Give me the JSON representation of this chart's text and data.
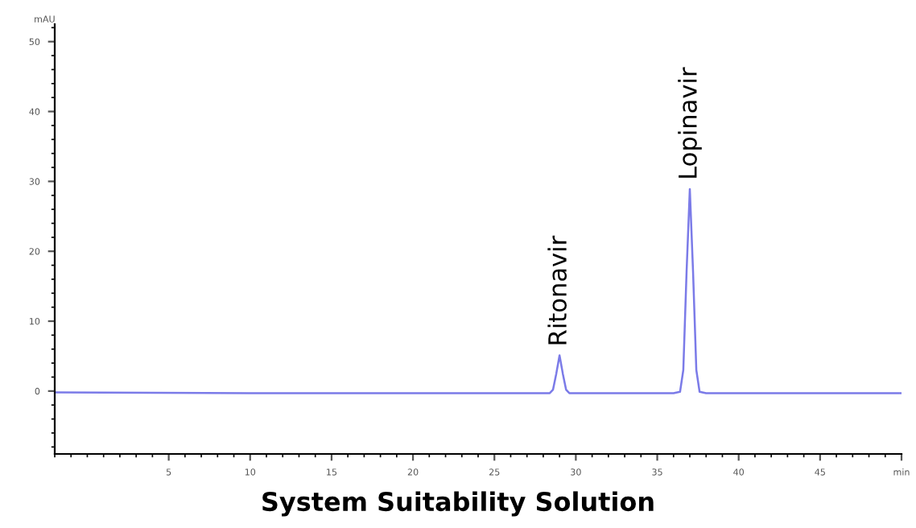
{
  "chart_data": {
    "type": "line",
    "title": "System Suitability Solution",
    "ylabel": "mAU",
    "x": [
      -2,
      10,
      20,
      27,
      28.4,
      28.6,
      28.8,
      29.0,
      29.2,
      29.4,
      29.6,
      32,
      36.0,
      36.4,
      36.6,
      36.8,
      37.0,
      37.2,
      37.4,
      37.6,
      38.0,
      44,
      50
    ],
    "series": [
      {
        "color": "#7b7be8",
        "values": [
          -0.2,
          -0.3,
          -0.3,
          -0.3,
          -0.3,
          0.2,
          2.5,
          5.1,
          2.5,
          0.2,
          -0.3,
          -0.3,
          -0.3,
          -0.1,
          3,
          17,
          28.9,
          17,
          3,
          -0.1,
          -0.3,
          -0.3,
          -0.3
        ]
      }
    ],
    "xlim": [
      -2,
      50
    ],
    "xticks": [
      5,
      10,
      15,
      20,
      25,
      30,
      35,
      40,
      45,
      {
        "value": 50,
        "label": "min"
      }
    ],
    "ylim": [
      -9,
      52.5
    ],
    "yticks": [
      0,
      10,
      20,
      30,
      40,
      50
    ],
    "annotations": [
      {
        "text": "Ritonavir",
        "x": 29.0,
        "y": 5.1
      },
      {
        "text": "Lopinavir",
        "x": 37.0,
        "y": 28.9
      }
    ],
    "grid": false,
    "legend": false,
    "marker": "none",
    "line_style": "solid"
  }
}
